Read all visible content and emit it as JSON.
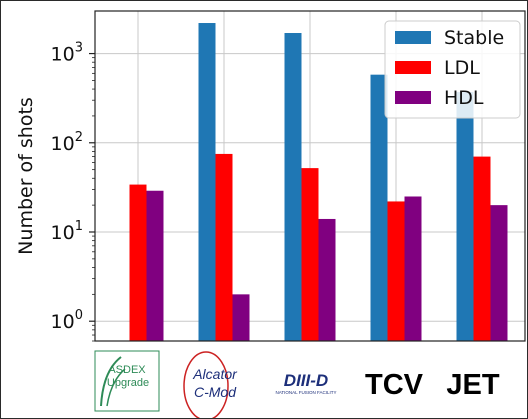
{
  "chart_data": {
    "type": "bar",
    "ylabel": "Number of shots",
    "yscale": "log",
    "ylim": [
      0.6,
      3000
    ],
    "yticks": [
      {
        "value": 1,
        "base": "10",
        "exp": "0"
      },
      {
        "value": 10,
        "base": "10",
        "exp": "1"
      },
      {
        "value": 100,
        "base": "10",
        "exp": "2"
      },
      {
        "value": 1000,
        "base": "10",
        "exp": "3"
      }
    ],
    "grid": true,
    "legend_position": "top-right",
    "categories": [
      "ASDEX Upgrade",
      "Alcator C-Mod",
      "DIII-D",
      "TCV",
      "JET"
    ],
    "series": [
      {
        "name": "Stable",
        "color": "#1f77b4",
        "values": [
          null,
          2200,
          1700,
          580,
          370
        ]
      },
      {
        "name": "LDL",
        "color": "#ff0000",
        "values": [
          34,
          75,
          52,
          22,
          70
        ]
      },
      {
        "name": "HDL",
        "color": "#800080",
        "values": [
          29,
          2,
          14,
          25,
          20
        ]
      }
    ]
  },
  "logos": {
    "asdex": {
      "line1": "ASDEX",
      "line2": "Upgrade"
    },
    "cmod": {
      "line1": "Alcator",
      "line2": "C-Mod"
    },
    "diiid": {
      "text": "DIII-D",
      "subtext": "NATIONAL FUSION FACILITY"
    },
    "tcv": {
      "text": "TCV"
    },
    "jet": {
      "text": "JET"
    }
  }
}
